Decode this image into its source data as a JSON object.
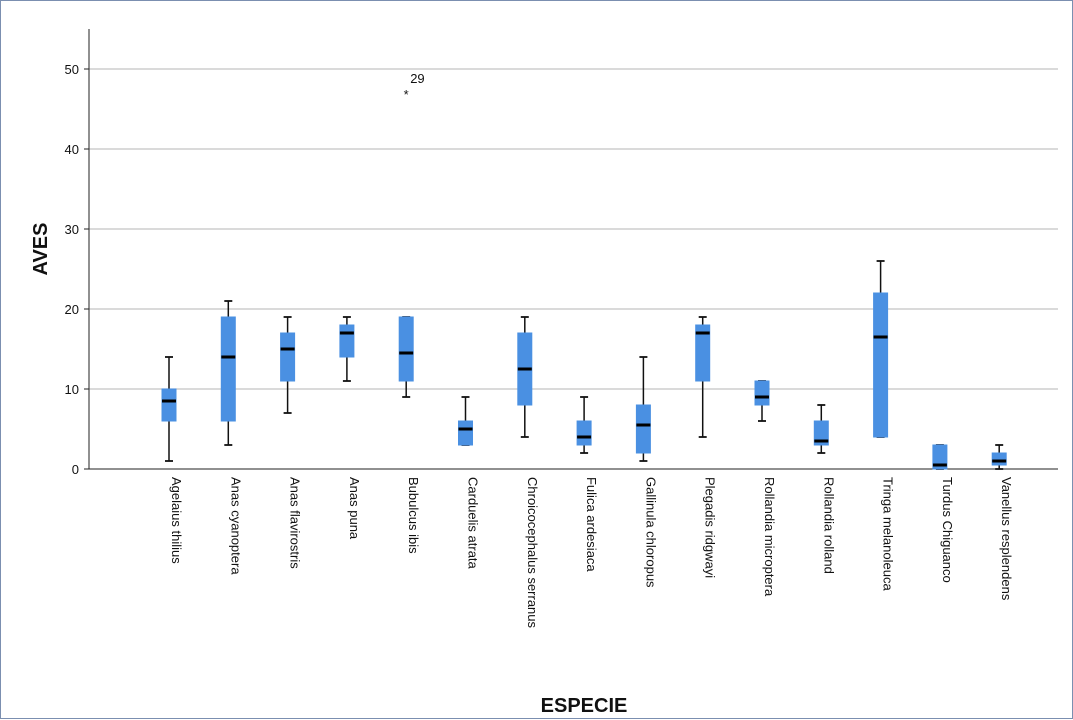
{
  "chart_data": {
    "type": "boxplot",
    "xlabel": "ESPECIE",
    "ylabel": "AVES",
    "ylim": [
      0,
      55
    ],
    "yticks": [
      0,
      10,
      20,
      30,
      40,
      50
    ],
    "grid": true,
    "box_color": "#4a90e2",
    "categories": [
      "Agelaius thilius",
      "Anas cyanoptera",
      "Anas flavirostris",
      "Anas puna",
      "Bubulcus ibis",
      "Carduelis atrata",
      "Chroicocephalus serranus",
      "Fulica ardesiaca",
      "Gallinula chloropus",
      "Plegadis ridgwayi",
      "Rollandia microptera",
      "Rollandia rolland",
      "Tringa melanoleuca",
      "Turdus Chiguanco",
      "Vanellus resplendens"
    ],
    "boxes": [
      {
        "min": 1,
        "q1": 6,
        "median": 8.5,
        "q3": 10,
        "max": 14
      },
      {
        "min": 3,
        "q1": 6,
        "median": 14,
        "q3": 19,
        "max": 21
      },
      {
        "min": 7,
        "q1": 11,
        "median": 15,
        "q3": 17,
        "max": 19
      },
      {
        "min": 11,
        "q1": 14,
        "median": 17,
        "q3": 18,
        "max": 19
      },
      {
        "min": 9,
        "q1": 11,
        "median": 14.5,
        "q3": 19,
        "max": 19
      },
      {
        "min": 3,
        "q1": 3,
        "median": 5,
        "q3": 6,
        "max": 9
      },
      {
        "min": 4,
        "q1": 8,
        "median": 12.5,
        "q3": 17,
        "max": 19
      },
      {
        "min": 2,
        "q1": 3,
        "median": 4,
        "q3": 6,
        "max": 9
      },
      {
        "min": 1,
        "q1": 2,
        "median": 5.5,
        "q3": 8,
        "max": 14
      },
      {
        "min": 4,
        "q1": 11,
        "median": 17,
        "q3": 18,
        "max": 19
      },
      {
        "min": 6,
        "q1": 8,
        "median": 9,
        "q3": 11,
        "max": 11
      },
      {
        "min": 2,
        "q1": 3,
        "median": 3.5,
        "q3": 6,
        "max": 8
      },
      {
        "min": 4,
        "q1": 4,
        "median": 16.5,
        "q3": 22,
        "max": 26
      },
      {
        "min": 0,
        "q1": 0,
        "median": 0.5,
        "q3": 3,
        "max": 3
      },
      {
        "min": 0,
        "q1": 0.5,
        "median": 1,
        "q3": 2,
        "max": 3
      }
    ],
    "outliers": [
      {
        "category_index": 4,
        "value": 47,
        "label": "29",
        "marker": "*"
      }
    ]
  }
}
